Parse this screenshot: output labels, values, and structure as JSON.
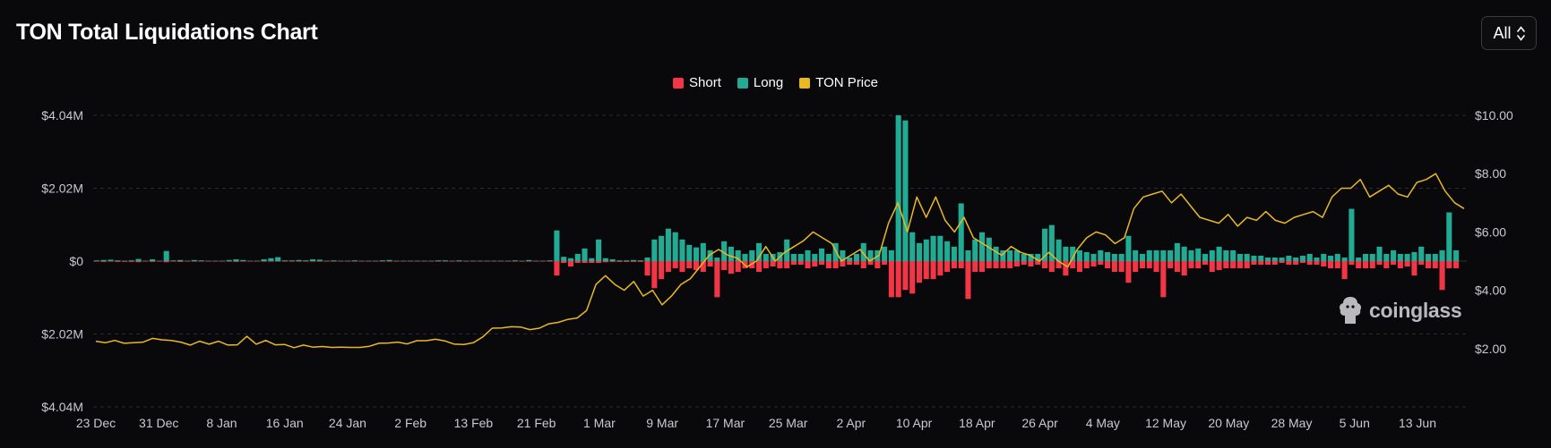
{
  "header": {
    "title": "TON Total Liquidations Chart",
    "range_value": "All"
  },
  "watermark": {
    "text": "coinglass"
  },
  "colors": {
    "short": "#f23645",
    "long": "#22ab94",
    "price": "#e8b923",
    "grid": "#2a2a30",
    "background": "#09090b"
  },
  "chart_data": {
    "type": "bar",
    "title": "TON Total Liquidations Chart",
    "legend": {
      "position": "top-center",
      "entries": [
        "Short",
        "Long",
        "TON Price"
      ]
    },
    "grid": true,
    "x_axis": {
      "ticks": [
        "23 Dec",
        "31 Dec",
        "8 Jan",
        "16 Jan",
        "24 Jan",
        "2 Feb",
        "13 Feb",
        "21 Feb",
        "1 Mar",
        "9 Mar",
        "17 Mar",
        "25 Mar",
        "2 Apr",
        "10 Apr",
        "18 Apr",
        "26 Apr",
        "4 May",
        "12 May",
        "20 May",
        "28 May",
        "5 Jun",
        "13 Jun"
      ]
    },
    "y_left": {
      "ticks": [
        "$4.04M",
        "$2.02M",
        "$0",
        "$2.02M",
        "$4.04M"
      ],
      "range": [
        -4.04,
        4.04
      ],
      "unit": "$M"
    },
    "y_right": {
      "ticks": [
        "$10.00",
        "$8.00",
        "$6.00",
        "$4.00",
        "$2.00"
      ],
      "range": [
        0,
        10
      ]
    },
    "series": [
      {
        "name": "Long",
        "type": "bar",
        "values": [
          0.02,
          0.03,
          0.04,
          0.02,
          0.01,
          0.02,
          0.06,
          0.01,
          0.05,
          0.01,
          0.28,
          0.02,
          0.03,
          0.01,
          0.03,
          0.02,
          0.01,
          0.01,
          0.01,
          0.03,
          0.05,
          0.03,
          0.01,
          0.01,
          0.05,
          0.08,
          0.11,
          0.02,
          0.02,
          0.03,
          0.02,
          0.05,
          0.04,
          0.01,
          0.02,
          0.01,
          0.01,
          0.02,
          0.01,
          0.01,
          0.01,
          0.02,
          0.03,
          0.01,
          0.01,
          0.01,
          0.01,
          0.01,
          0.01,
          0.02,
          0.02,
          0.01,
          0.02,
          0.01,
          0.01,
          0.01,
          0.01,
          0.01,
          0.01,
          0.01,
          0.02,
          0.01,
          0.03,
          0.01,
          0.01,
          0.02,
          0.85,
          0.12,
          0.08,
          0.2,
          0.35,
          0.08,
          0.6,
          0.08,
          0.05,
          0.02,
          0.02,
          0.03,
          0.02,
          0.1,
          0.6,
          0.7,
          0.9,
          0.8,
          0.6,
          0.45,
          0.38,
          0.5,
          0.3,
          0.1,
          0.55,
          0.4,
          0.3,
          0.2,
          0.3,
          0.5,
          0.2,
          0.2,
          0.25,
          0.6,
          0.2,
          0.2,
          0.3,
          0.2,
          0.35,
          0.2,
          0.5,
          0.3,
          0.1,
          0.2,
          0.5,
          0.3,
          0.3,
          0.4,
          0.3,
          4.04,
          3.9,
          0.8,
          0.5,
          0.6,
          0.7,
          0.7,
          0.55,
          0.4,
          1.6,
          0.3,
          0.6,
          0.8,
          0.65,
          0.4,
          0.3,
          0.3,
          0.3,
          0.2,
          0.2,
          0.2,
          0.9,
          1.0,
          0.6,
          0.4,
          0.4,
          0.3,
          0.25,
          0.2,
          0.3,
          0.25,
          0.2,
          0.2,
          0.7,
          0.3,
          0.2,
          0.3,
          0.3,
          0.3,
          0.3,
          0.5,
          0.4,
          0.3,
          0.35,
          0.2,
          0.3,
          0.4,
          0.3,
          0.3,
          0.2,
          0.2,
          0.15,
          0.15,
          0.1,
          0.1,
          0.1,
          0.15,
          0.1,
          0.15,
          0.2,
          0.1,
          0.2,
          0.15,
          0.2,
          0.1,
          1.45,
          0.1,
          0.2,
          0.2,
          0.4,
          0.2,
          0.3,
          0.2,
          0.2,
          0.25,
          0.4,
          0.2,
          0.2,
          0.3,
          1.35,
          0.3
        ]
      },
      {
        "name": "Short",
        "type": "bar",
        "values": [
          0.01,
          0.02,
          0.01,
          0.02,
          0.02,
          0.02,
          0.03,
          0.01,
          0.02,
          0.01,
          0.03,
          0.01,
          0.02,
          0.01,
          0.01,
          0.01,
          0.01,
          0.01,
          0.01,
          0.01,
          0.02,
          0.01,
          0.01,
          0.01,
          0.01,
          0.01,
          0.01,
          0.01,
          0.01,
          0.01,
          0.01,
          0.01,
          0.01,
          0.01,
          0.01,
          0.01,
          0.01,
          0.01,
          0.01,
          0.01,
          0.01,
          0.01,
          0.01,
          0.01,
          0.01,
          0.01,
          0.01,
          0.01,
          0.01,
          0.01,
          0.01,
          0.01,
          0.01,
          0.01,
          0.01,
          0.01,
          0.01,
          0.01,
          0.01,
          0.01,
          0.01,
          0.01,
          0.01,
          0.01,
          0.01,
          0.01,
          0.4,
          0.05,
          0.15,
          0.05,
          0.05,
          0.05,
          0.05,
          0.03,
          0.02,
          0.02,
          0.02,
          0.02,
          0.02,
          0.4,
          0.75,
          0.5,
          0.3,
          0.2,
          0.3,
          0.2,
          0.25,
          0.3,
          0.15,
          1.0,
          0.25,
          0.35,
          0.3,
          0.2,
          0.2,
          0.3,
          0.2,
          0.15,
          0.2,
          0.2,
          0.1,
          0.1,
          0.2,
          0.15,
          0.1,
          0.2,
          0.2,
          0.15,
          0.1,
          0.1,
          0.2,
          0.1,
          0.2,
          0.1,
          1.0,
          1.0,
          0.8,
          0.9,
          0.6,
          0.5,
          0.5,
          0.4,
          0.3,
          0.2,
          0.2,
          1.05,
          0.3,
          0.3,
          0.2,
          0.2,
          0.2,
          0.2,
          0.15,
          0.1,
          0.15,
          0.1,
          0.2,
          0.3,
          0.2,
          0.4,
          0.2,
          0.3,
          0.2,
          0.15,
          0.1,
          0.2,
          0.3,
          0.3,
          0.6,
          0.3,
          0.2,
          0.2,
          0.3,
          1.0,
          0.2,
          0.3,
          0.4,
          0.2,
          0.2,
          0.1,
          0.3,
          0.25,
          0.2,
          0.2,
          0.2,
          0.2,
          0.1,
          0.1,
          0.1,
          0.1,
          0.05,
          0.1,
          0.1,
          0.05,
          0.1,
          0.1,
          0.15,
          0.2,
          0.2,
          0.5,
          0.1,
          0.2,
          0.2,
          0.2,
          0.1,
          0.2,
          0.1,
          0.2,
          0.15,
          0.4,
          0.1,
          0.2,
          0.2,
          0.8,
          0.2,
          0.2
        ]
      },
      {
        "name": "TON Price",
        "type": "line",
        "axis": "right",
        "values": [
          2.25,
          2.2,
          2.28,
          2.18,
          2.2,
          2.22,
          2.35,
          2.3,
          2.28,
          2.22,
          2.12,
          2.25,
          2.15,
          2.25,
          2.12,
          2.13,
          2.42,
          2.15,
          2.28,
          2.13,
          2.14,
          2.03,
          2.12,
          2.05,
          2.07,
          2.04,
          2.05,
          2.04,
          2.04,
          2.08,
          2.18,
          2.19,
          2.22,
          2.16,
          2.27,
          2.27,
          2.32,
          2.26,
          2.15,
          2.14,
          2.2,
          2.4,
          2.7,
          2.71,
          2.75,
          2.74,
          2.65,
          2.7,
          2.85,
          2.9,
          3.0,
          3.05,
          3.3,
          4.2,
          4.5,
          4.2,
          4.0,
          4.3,
          3.8,
          4.0,
          3.5,
          3.8,
          4.2,
          4.4,
          4.8,
          5.2,
          5.4,
          5.2,
          5.1,
          4.8,
          5.0,
          5.5,
          5.0,
          5.3,
          5.5,
          5.7,
          6.0,
          5.8,
          5.6,
          5.0,
          5.2,
          5.4,
          5.0,
          5.2,
          6.3,
          7.0,
          6.0,
          7.2,
          6.5,
          7.2,
          6.4,
          6.0,
          6.5,
          5.8,
          5.6,
          5.4,
          5.2,
          5.5,
          5.3,
          5.2,
          5.0,
          5.3,
          5.0,
          4.8,
          5.4,
          5.8,
          6.0,
          5.9,
          5.6,
          5.8,
          6.8,
          7.2,
          7.3,
          7.4,
          7.0,
          7.3,
          6.9,
          6.5,
          6.4,
          6.3,
          6.6,
          6.2,
          6.5,
          6.4,
          6.7,
          6.4,
          6.3,
          6.5,
          6.6,
          6.7,
          6.5,
          7.2,
          7.5,
          7.5,
          7.8,
          7.2,
          7.4,
          7.6,
          7.3,
          7.2,
          7.7,
          7.8,
          8.0,
          7.4,
          7.0,
          6.8
        ]
      }
    ]
  }
}
